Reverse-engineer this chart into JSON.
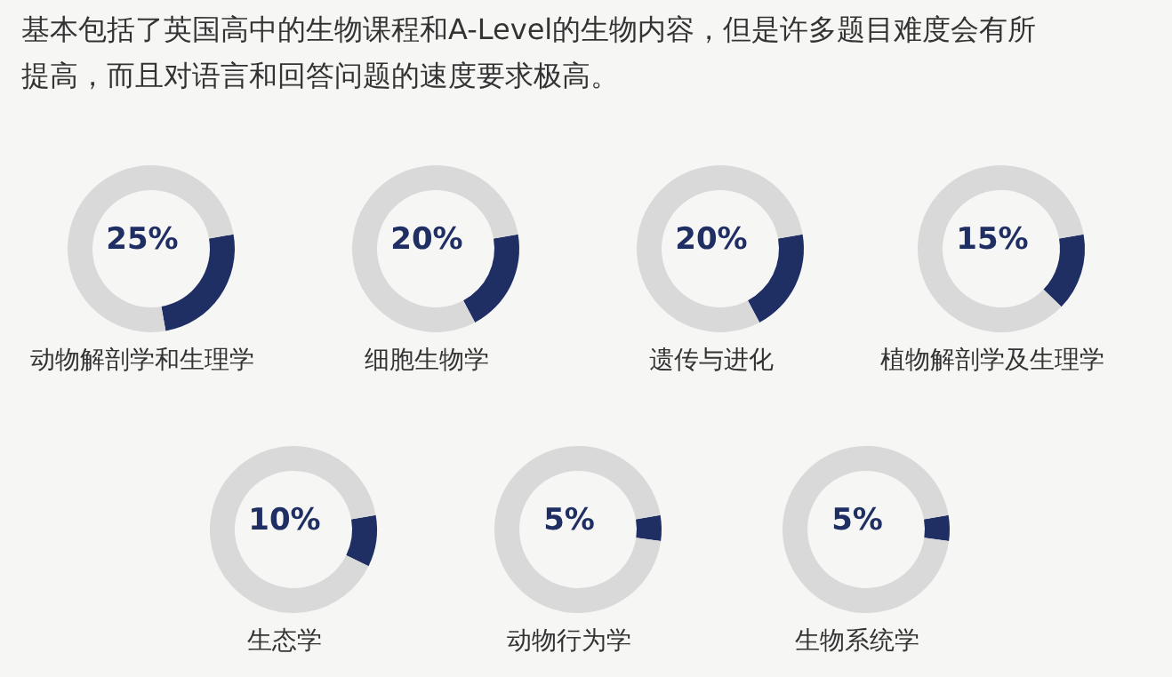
{
  "chart_data": [
    {
      "type": "other",
      "title": "基本包括了英国高中的生物课程和A-Level的生物内容，但是许多题目难度会有所提高，而且对语言和回答问题的速度要求极高。"
    },
    {
      "type": "donut",
      "title": "动物解剖学和生理学",
      "categories": [
        null,
        null
      ],
      "values": [
        25,
        75
      ],
      "colors": [
        "#1f2f63",
        "#d9d9d9"
      ],
      "annotations": [
        "25%"
      ]
    },
    {
      "type": "donut",
      "title": "细胞生物学",
      "categories": [
        null,
        null
      ],
      "values": [
        20,
        80
      ],
      "colors": [
        "#1f2f63",
        "#d9d9d9"
      ],
      "annotations": [
        "20%"
      ]
    },
    {
      "type": "donut",
      "title": "遗传与进化",
      "categories": [
        null,
        null
      ],
      "values": [
        20,
        80
      ],
      "colors": [
        "#1f2f63",
        "#d9d9d9"
      ],
      "annotations": [
        "20%"
      ]
    },
    {
      "type": "donut",
      "title": "植物解剖学及生理学",
      "categories": [
        null,
        null
      ],
      "values": [
        15,
        85
      ],
      "colors": [
        "#1f2f63",
        "#d9d9d9"
      ],
      "annotations": [
        "15%"
      ]
    },
    {
      "type": "donut",
      "title": "生态学",
      "categories": [
        null,
        null
      ],
      "values": [
        10,
        90
      ],
      "colors": [
        "#1f2f63",
        "#d9d9d9"
      ],
      "annotations": [
        "10%"
      ]
    },
    {
      "type": "donut",
      "title": "动物行为学",
      "categories": [
        null,
        null
      ],
      "values": [
        5,
        95
      ],
      "colors": [
        "#1f2f63",
        "#d9d9d9"
      ],
      "annotations": [
        "5%"
      ]
    },
    {
      "type": "donut",
      "title": "生物系统学",
      "categories": [
        null,
        null
      ],
      "values": [
        5,
        95
      ],
      "colors": [
        "#1f2f63",
        "#d9d9d9"
      ],
      "annotations": [
        "5%"
      ]
    }
  ]
}
